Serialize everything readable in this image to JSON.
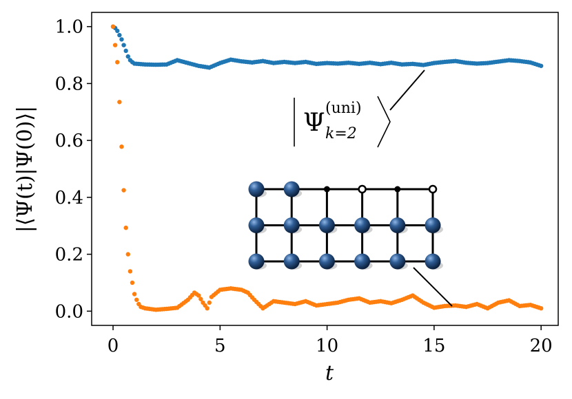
{
  "chart_data": {
    "type": "scatter",
    "xlabel": "t",
    "ylabel": "|⟨Ψ(t)|Ψ(0)⟩|",
    "xlim": [
      -1,
      20.8
    ],
    "ylim": [
      -0.05,
      1.05
    ],
    "xticks": [
      0,
      5,
      10,
      15,
      20
    ],
    "yticks": [
      0.0,
      0.2,
      0.4,
      0.6,
      0.8,
      1.0
    ],
    "xtick_labels": [
      "0",
      "5",
      "10",
      "15",
      "20"
    ],
    "ytick_labels": [
      "0.0",
      "0.2",
      "0.4",
      "0.6",
      "0.8",
      "1.0"
    ],
    "grid": false,
    "series": [
      {
        "color": "#1f77b4",
        "points": [
          [
            0.0,
            1.0
          ],
          [
            0.1,
            0.995
          ],
          [
            0.2,
            0.985
          ],
          [
            0.3,
            0.97
          ],
          [
            0.4,
            0.955
          ],
          [
            0.5,
            0.935
          ],
          [
            0.6,
            0.915
          ],
          [
            0.7,
            0.895
          ],
          [
            0.8,
            0.882
          ],
          [
            0.9,
            0.875
          ],
          [
            1.0,
            0.87
          ],
          [
            1.5,
            0.867
          ],
          [
            2.0,
            0.866
          ],
          [
            2.5,
            0.867
          ],
          [
            3.0,
            0.882
          ],
          [
            3.5,
            0.872
          ],
          [
            4.0,
            0.862
          ],
          [
            4.5,
            0.856
          ],
          [
            5.0,
            0.872
          ],
          [
            5.5,
            0.884
          ],
          [
            6.0,
            0.878
          ],
          [
            6.5,
            0.874
          ],
          [
            7.0,
            0.879
          ],
          [
            7.5,
            0.872
          ],
          [
            8.0,
            0.876
          ],
          [
            8.5,
            0.872
          ],
          [
            9.0,
            0.876
          ],
          [
            9.5,
            0.869
          ],
          [
            10.0,
            0.872
          ],
          [
            10.5,
            0.87
          ],
          [
            11.0,
            0.873
          ],
          [
            11.5,
            0.869
          ],
          [
            12.0,
            0.873
          ],
          [
            12.5,
            0.868
          ],
          [
            13.0,
            0.873
          ],
          [
            13.5,
            0.867
          ],
          [
            14.0,
            0.869
          ],
          [
            14.5,
            0.865
          ],
          [
            15.0,
            0.872
          ],
          [
            15.5,
            0.876
          ],
          [
            16.0,
            0.879
          ],
          [
            16.5,
            0.873
          ],
          [
            17.0,
            0.87
          ],
          [
            17.5,
            0.872
          ],
          [
            18.0,
            0.877
          ],
          [
            18.5,
            0.882
          ],
          [
            19.0,
            0.879
          ],
          [
            19.5,
            0.874
          ],
          [
            20.0,
            0.862
          ]
        ]
      },
      {
        "color": "#ff7f0e",
        "points": [
          [
            0.0,
            1.0
          ],
          [
            0.1,
            0.935
          ],
          [
            0.2,
            0.875
          ],
          [
            0.3,
            0.735
          ],
          [
            0.4,
            0.578
          ],
          [
            0.5,
            0.425
          ],
          [
            0.6,
            0.293
          ],
          [
            0.7,
            0.2
          ],
          [
            0.8,
            0.14
          ],
          [
            0.9,
            0.1
          ],
          [
            1.0,
            0.06
          ],
          [
            1.1,
            0.04
          ],
          [
            1.2,
            0.025
          ],
          [
            1.3,
            0.015
          ],
          [
            1.5,
            0.01
          ],
          [
            2.0,
            0.005
          ],
          [
            2.5,
            0.008
          ],
          [
            3.0,
            0.012
          ],
          [
            3.5,
            0.04
          ],
          [
            3.8,
            0.065
          ],
          [
            4.0,
            0.055
          ],
          [
            4.2,
            0.03
          ],
          [
            4.4,
            0.01
          ],
          [
            4.6,
            0.05
          ],
          [
            5.0,
            0.075
          ],
          [
            5.5,
            0.08
          ],
          [
            6.0,
            0.075
          ],
          [
            6.3,
            0.065
          ],
          [
            6.6,
            0.04
          ],
          [
            7.0,
            0.01
          ],
          [
            7.5,
            0.035
          ],
          [
            8.0,
            0.03
          ],
          [
            8.5,
            0.025
          ],
          [
            9.0,
            0.035
          ],
          [
            9.5,
            0.02
          ],
          [
            10.0,
            0.025
          ],
          [
            10.5,
            0.03
          ],
          [
            11.0,
            0.04
          ],
          [
            11.5,
            0.045
          ],
          [
            12.0,
            0.03
          ],
          [
            12.5,
            0.035
          ],
          [
            13.0,
            0.028
          ],
          [
            13.5,
            0.04
          ],
          [
            14.0,
            0.055
          ],
          [
            14.5,
            0.03
          ],
          [
            15.0,
            0.012
          ],
          [
            15.5,
            0.018
          ],
          [
            16.0,
            0.02
          ],
          [
            16.5,
            0.015
          ],
          [
            17.0,
            0.025
          ],
          [
            17.5,
            0.01
          ],
          [
            18.0,
            0.03
          ],
          [
            18.5,
            0.038
          ],
          [
            19.0,
            0.018
          ],
          [
            19.5,
            0.022
          ],
          [
            20.0,
            0.01
          ]
        ]
      }
    ],
    "annotation": {
      "text_base": "Ψ",
      "text_super": "(uni)",
      "text_sub": "k=2"
    },
    "inset_lattice": {
      "rows": 3,
      "cols": 6,
      "top_row_sites": [
        "ball",
        "ball",
        "dot",
        "ring",
        "dot",
        "ring"
      ],
      "site_color": "#1f3e6b"
    }
  }
}
